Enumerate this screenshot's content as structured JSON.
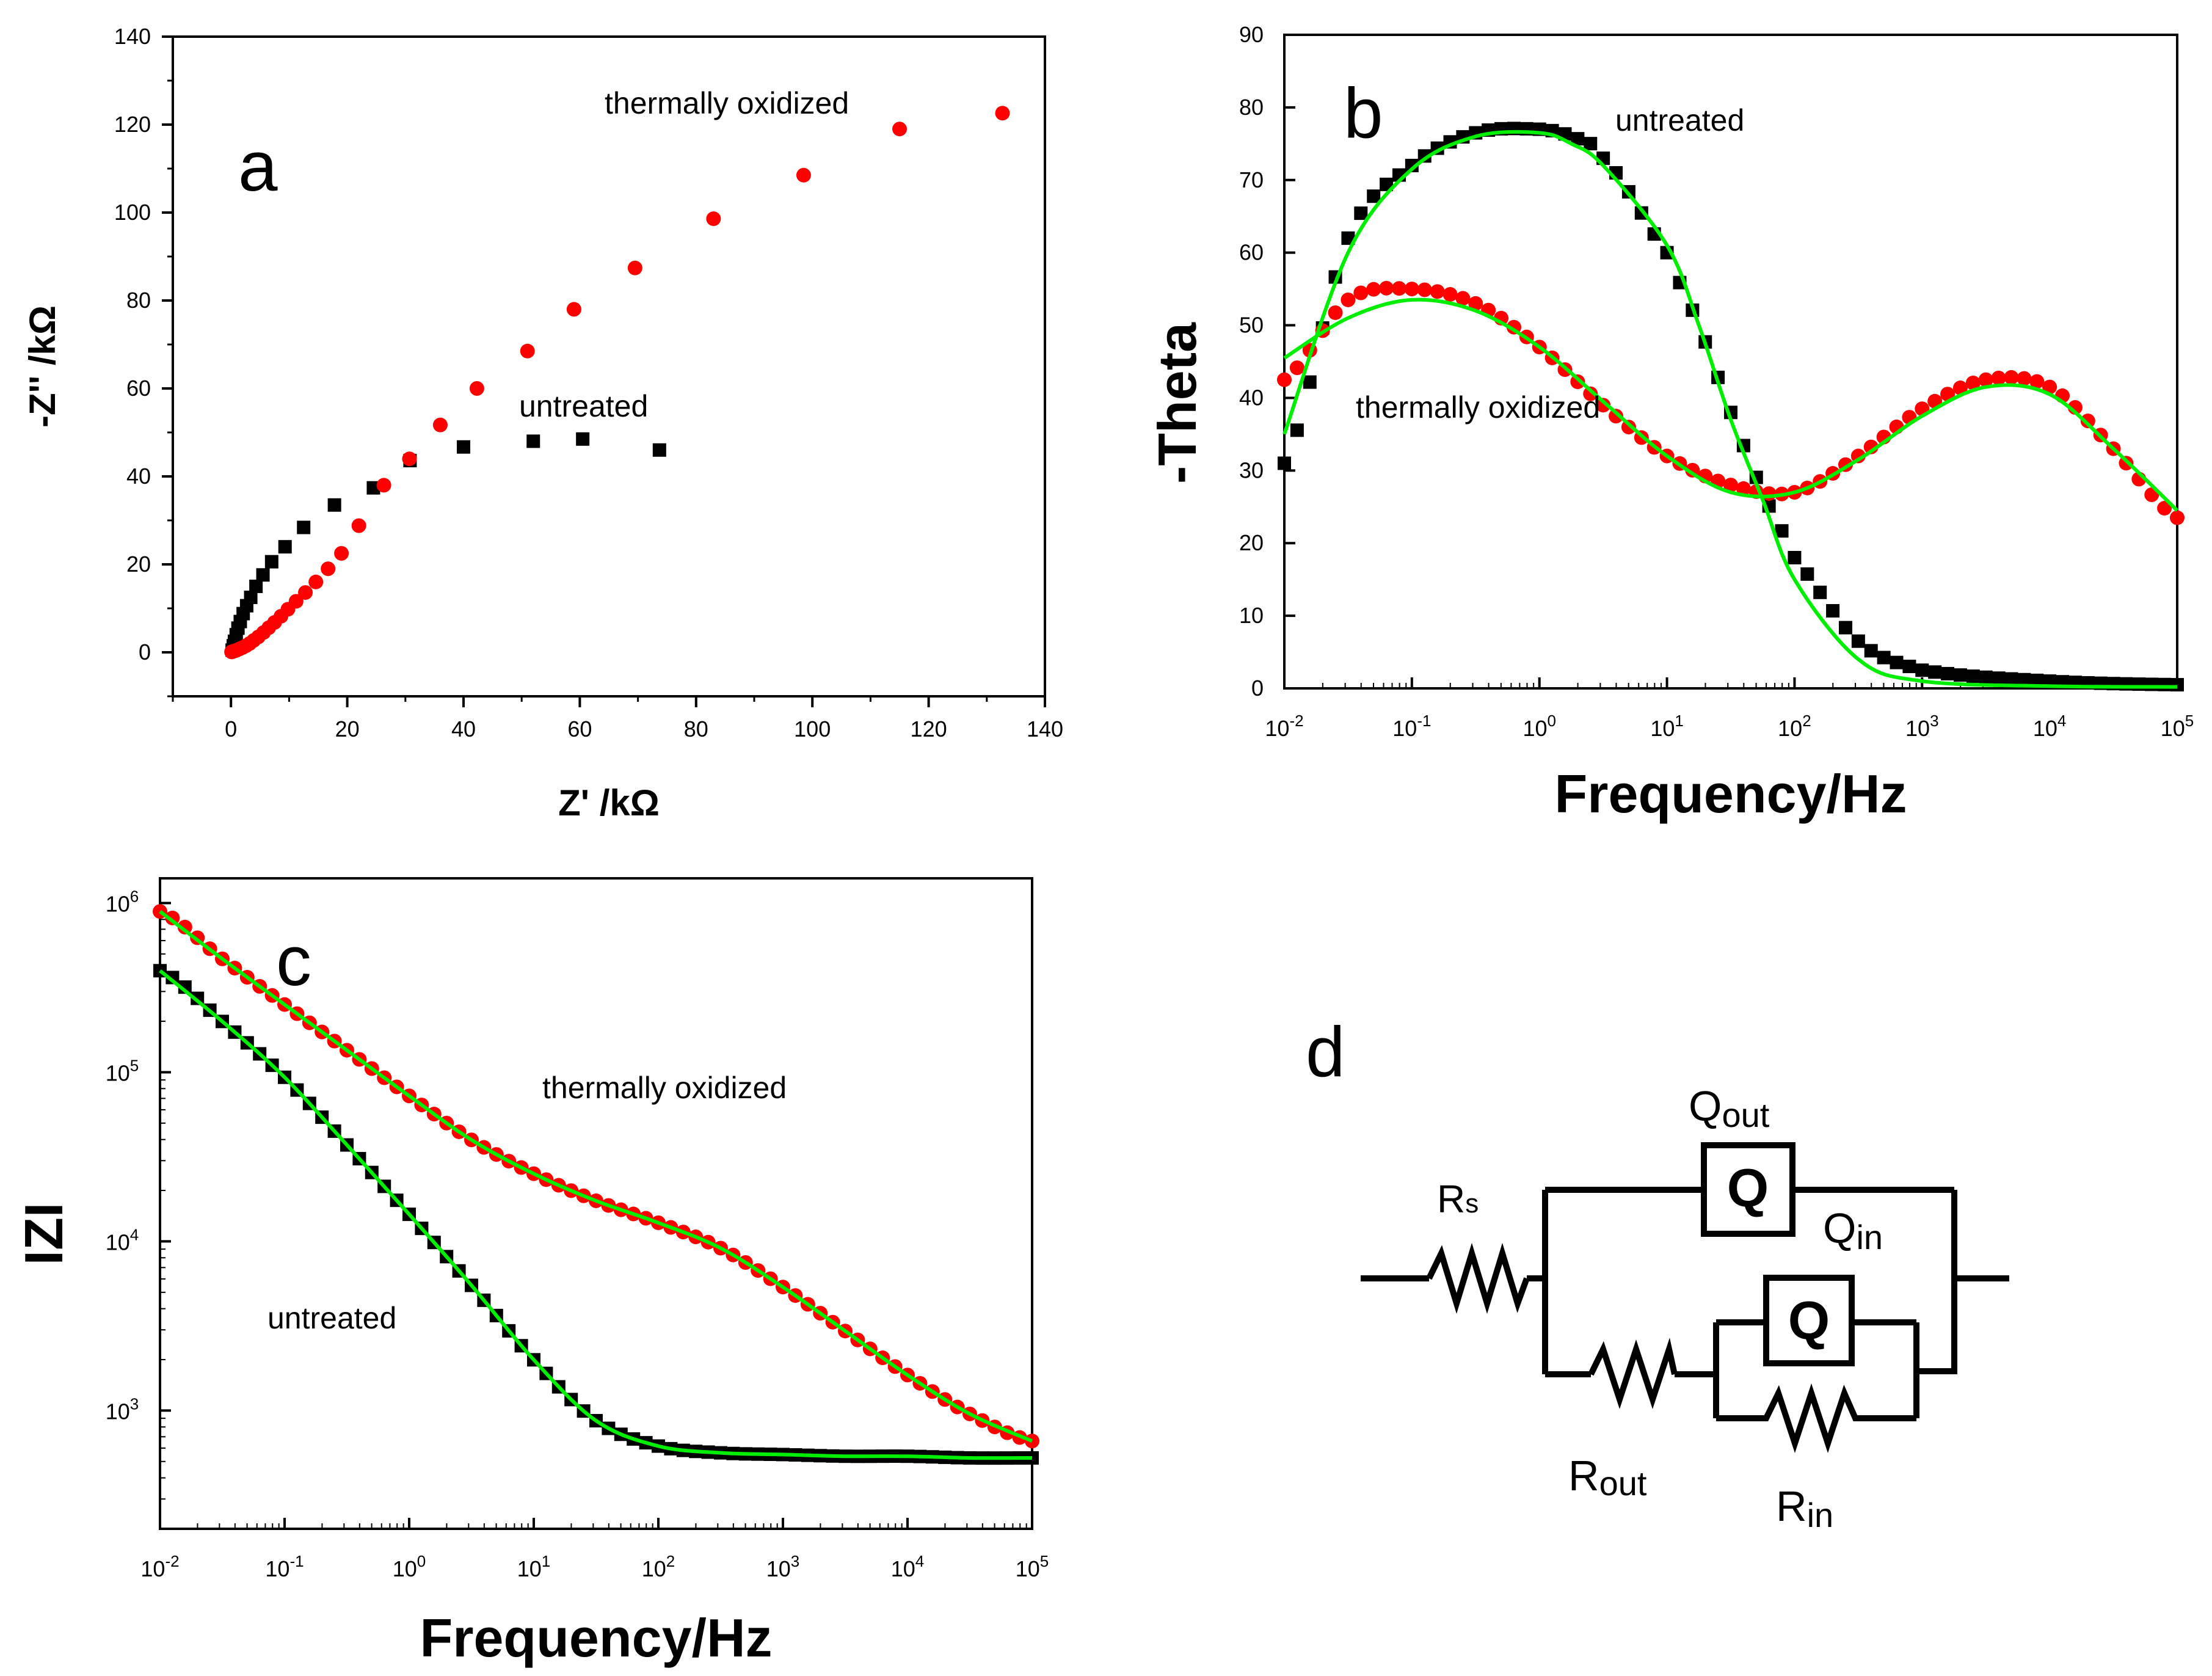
{
  "chart_data": [
    {
      "panel": "a",
      "type": "scatter",
      "xlabel": "Z' /kΩ",
      "ylabel": "-Z'' /kΩ",
      "xlim": [
        -10,
        140
      ],
      "ylim": [
        -10,
        140
      ],
      "xticks": [
        0,
        20,
        40,
        60,
        80,
        100,
        120,
        140
      ],
      "yticks": [
        0,
        20,
        40,
        60,
        80,
        100,
        120,
        140
      ],
      "annotations": [
        "thermally oxidized",
        "untreated"
      ],
      "series": [
        {
          "name": "untreated",
          "marker": "square",
          "color": "#000000",
          "x": [
            0.2,
            0.4,
            0.6,
            0.9,
            1.2,
            1.6,
            2.1,
            2.7,
            3.4,
            4.3,
            5.5,
            7.0,
            9.3,
            12.5,
            17.8,
            24.5,
            30.8,
            40.0,
            52.0,
            60.5,
            73.7
          ],
          "y": [
            0.5,
            1.5,
            2.5,
            4.0,
            5.5,
            7.0,
            8.8,
            10.6,
            12.5,
            15.0,
            17.6,
            20.6,
            24.0,
            28.4,
            33.5,
            37.4,
            43.6,
            46.7,
            48.0,
            48.5,
            46.0
          ]
        },
        {
          "name": "thermally oxidized",
          "marker": "circle",
          "color": "#ff0000",
          "x": [
            0.1,
            0.3,
            0.6,
            1.0,
            1.5,
            2.0,
            2.6,
            3.2,
            3.9,
            4.7,
            5.6,
            6.5,
            7.5,
            8.6,
            9.8,
            11.2,
            12.8,
            14.6,
            16.7,
            19.0,
            22.0,
            26.3,
            30.7,
            36.0,
            42.3,
            51.0,
            59.0,
            69.5,
            83.0,
            98.5,
            115.0,
            132.7
          ],
          "y": [
            0.1,
            0.2,
            0.3,
            0.5,
            0.8,
            1.1,
            1.5,
            2.0,
            2.7,
            3.5,
            4.5,
            5.6,
            6.8,
            8.2,
            9.8,
            11.6,
            13.6,
            16.0,
            19.0,
            22.5,
            28.8,
            38.0,
            44.0,
            51.7,
            60.0,
            68.5,
            78.0,
            87.4,
            98.6,
            108.5,
            119.0,
            122.6
          ]
        }
      ]
    },
    {
      "panel": "b",
      "type": "scatter",
      "xlabel": "Frequency/Hz",
      "ylabel": "-Theta",
      "xscale": "log",
      "xlim": [
        0.01,
        100000
      ],
      "ylim": [
        0,
        90
      ],
      "xticks": [
        "10-2",
        "10-1",
        "100",
        "101",
        "102",
        "103",
        "104",
        "105"
      ],
      "yticks": [
        0,
        10,
        20,
        30,
        40,
        50,
        60,
        70,
        80,
        90
      ],
      "annotations": [
        "untreated",
        "thermally oxidized"
      ],
      "series": [
        {
          "name": "untreated",
          "marker": "square",
          "color": "#000000",
          "fit_color": "#00ee00",
          "logf": [
            -2.0,
            -1.5,
            -1.0,
            -0.5,
            0.0,
            0.25,
            0.5,
            1.0,
            1.25,
            1.5,
            1.75,
            2.0,
            2.5,
            3.0,
            4.0,
            5.0
          ],
          "theta": [
            31.0,
            62.0,
            72.0,
            76.5,
            77.0,
            76.0,
            73.0,
            60.0,
            50.0,
            38.0,
            27.0,
            18.0,
            6.5,
            2.5,
            1.0,
            0.5
          ],
          "fit": [
            35.0,
            60.0,
            71.5,
            76.0,
            76.5,
            75.0,
            72.0,
            61.0,
            50.0,
            37.0,
            26.0,
            15.0,
            4.0,
            1.0,
            0.3,
            0.2
          ]
        },
        {
          "name": "thermally oxidized",
          "marker": "circle",
          "color": "#ff0000",
          "fit_color": "#00ee00",
          "logf": [
            -2.0,
            -1.5,
            -1.0,
            -0.5,
            0.0,
            0.5,
            1.0,
            1.5,
            2.0,
            2.5,
            3.0,
            3.5,
            4.0,
            4.5,
            5.0
          ],
          "theta": [
            42.5,
            53.5,
            55.0,
            53.0,
            47.0,
            39.0,
            32.0,
            28.0,
            27.0,
            32.0,
            38.5,
            42.5,
            41.5,
            33.0,
            23.5
          ],
          "fit": [
            45.5,
            51.0,
            53.5,
            52.0,
            47.0,
            39.5,
            32.0,
            27.0,
            27.0,
            31.5,
            37.5,
            41.5,
            40.5,
            33.0,
            24.5
          ]
        }
      ]
    },
    {
      "panel": "c",
      "type": "line",
      "xlabel": "Frequency/Hz",
      "ylabel": "IZI",
      "xscale": "log",
      "yscale": "log",
      "xlim": [
        0.01,
        100000
      ],
      "ylim": [
        200,
        1400000
      ],
      "xticks": [
        "10-2",
        "10-1",
        "100",
        "101",
        "102",
        "103",
        "104",
        "105"
      ],
      "yticks": [
        "103",
        "104",
        "105",
        "106"
      ],
      "annotations": [
        "thermally oxidized",
        "untreated"
      ],
      "series": [
        {
          "name": "thermally oxidized",
          "marker": "circle",
          "color": "#ff0000",
          "fit_color": "#00ee00",
          "logf": [
            -2.0,
            -1.5,
            -1.0,
            -0.5,
            0.0,
            0.5,
            1.0,
            1.5,
            2.0,
            2.5,
            3.0,
            3.5,
            4.0,
            4.5,
            5.0
          ],
          "logz": [
            5.95,
            5.67,
            5.4,
            5.13,
            4.86,
            4.6,
            4.4,
            4.24,
            4.11,
            3.96,
            3.73,
            3.47,
            3.21,
            2.98,
            2.82
          ]
        },
        {
          "name": "untreated",
          "marker": "square",
          "color": "#000000",
          "fit_color": "#00ee00",
          "logf": [
            -2.0,
            -1.5,
            -1.0,
            -0.5,
            0.0,
            0.5,
            1.0,
            1.5,
            2.0,
            2.5,
            3.0,
            3.5,
            4.0,
            4.5,
            5.0
          ],
          "logz": [
            5.6,
            5.3,
            4.97,
            4.57,
            4.16,
            3.74,
            3.3,
            2.94,
            2.79,
            2.75,
            2.74,
            2.73,
            2.73,
            2.72,
            2.72
          ]
        }
      ]
    }
  ],
  "panels": {
    "a": {
      "label": "a"
    },
    "b": {
      "label": "b"
    },
    "c": {
      "label": "c"
    },
    "d": {
      "label": "d"
    }
  },
  "circuit": {
    "rs_main": "R",
    "rs_sub": "s",
    "qout_main": "Q",
    "qout_sub": "out",
    "qin_main": "Q",
    "qin_sub": "in",
    "rout_main": "R",
    "rout_sub": "out",
    "rin_main": "R",
    "rin_sub": "in",
    "cpe_symbol": "Q"
  }
}
